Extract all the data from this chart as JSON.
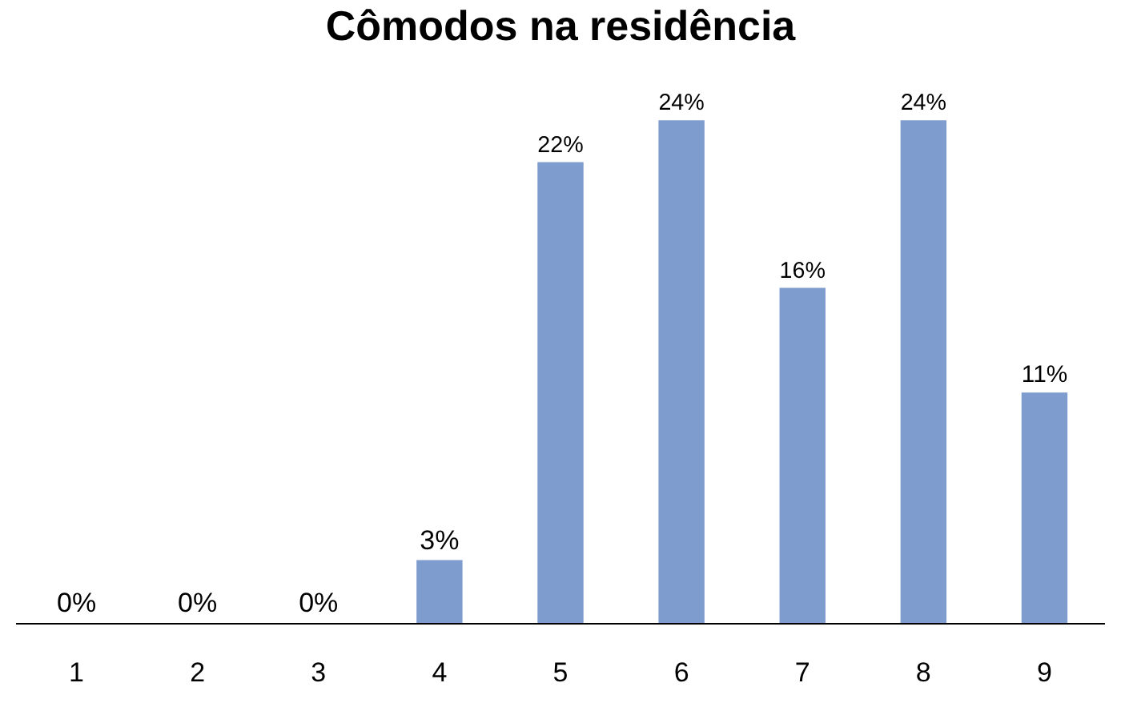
{
  "chart_data": {
    "type": "bar",
    "title": "Cômodos na residência",
    "categories": [
      "1",
      "2",
      "3",
      "4",
      "5",
      "6",
      "7",
      "8",
      "9"
    ],
    "values": [
      0,
      0,
      0,
      3,
      22,
      24,
      16,
      24,
      11
    ],
    "value_labels": [
      "0%",
      "0%",
      "0%",
      "3%",
      "22%",
      "24%",
      "16%",
      "24%",
      "11%"
    ],
    "color": "#7f9ccf"
  }
}
